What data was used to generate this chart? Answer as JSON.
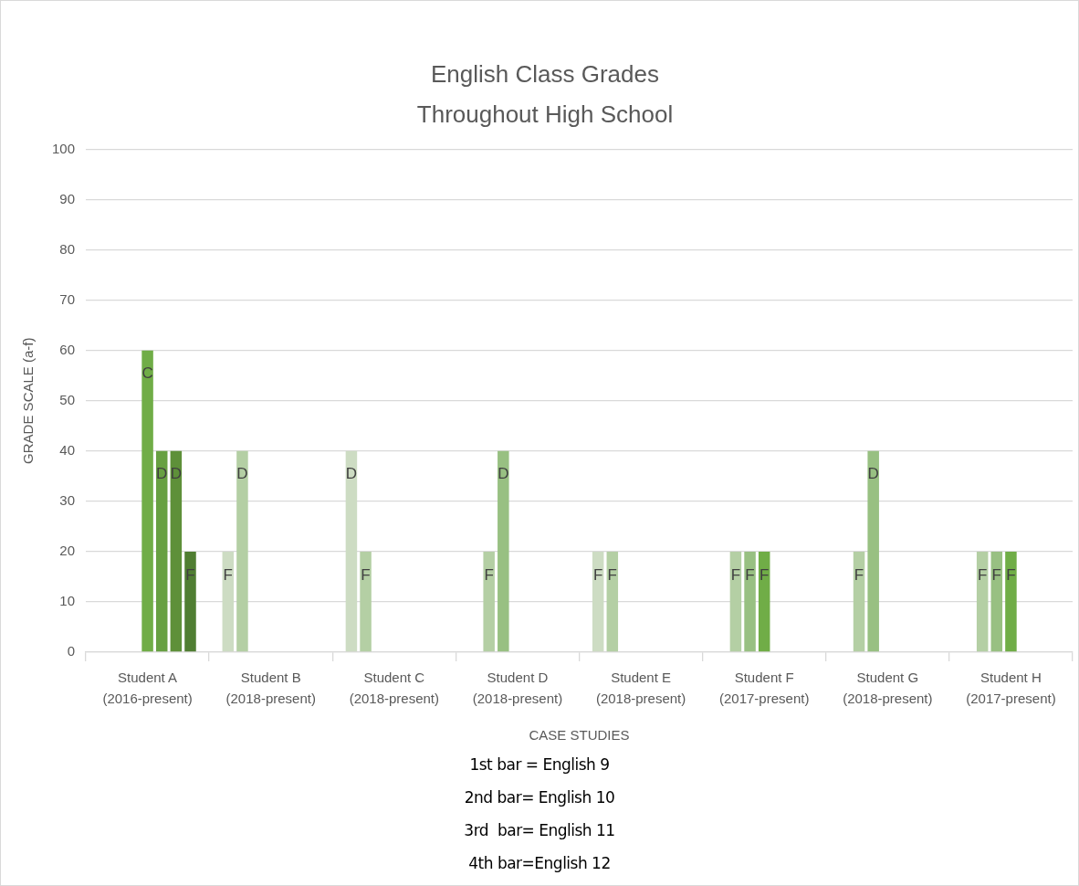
{
  "chart_data": {
    "type": "bar",
    "title": "English Class Grades\nThroughout High School",
    "xlabel": "CASE STUDIES",
    "ylabel": "GRADE SCALE (a-f)",
    "categories": [
      "Student A\n(2016-present)",
      "Student B\n(2018-present)",
      "Student C\n(2018-present)",
      "Student D\n(2018-present)",
      "Student E\n(2018-present)",
      "Student F\n(2017-present)",
      "Student G\n(2018-present)",
      "Student H\n(2017-present)"
    ],
    "series": [
      {
        "color": "#cddcc3",
        "values": [
          null,
          20,
          40,
          null,
          20,
          null,
          null,
          null
        ],
        "value_labels": [
          null,
          "F",
          "D",
          null,
          "F",
          null,
          null,
          null
        ]
      },
      {
        "color": "#b4cfa4",
        "values": [
          null,
          40,
          20,
          20,
          20,
          20,
          20,
          20
        ],
        "value_labels": [
          null,
          "D",
          "F",
          "F",
          "F",
          "F",
          "F",
          "F"
        ]
      },
      {
        "color": "#98c082",
        "values": [
          null,
          null,
          null,
          40,
          null,
          20,
          40,
          20
        ],
        "value_labels": [
          null,
          null,
          null,
          "D",
          null,
          "F",
          "D",
          "F"
        ]
      },
      {
        "color": "#70ad47",
        "values": [
          60,
          null,
          null,
          null,
          null,
          20,
          null,
          20
        ],
        "value_labels": [
          "C",
          null,
          null,
          null,
          null,
          "F",
          null,
          "F"
        ]
      },
      {
        "color": "#67a042",
        "values": [
          40,
          null,
          null,
          null,
          null,
          null,
          null,
          null
        ],
        "value_labels": [
          "D",
          null,
          null,
          null,
          null,
          null,
          null,
          null
        ]
      },
      {
        "color": "#5e9039",
        "values": [
          40,
          null,
          null,
          null,
          null,
          null,
          null,
          null
        ],
        "value_labels": [
          "D",
          null,
          null,
          null,
          null,
          null,
          null,
          null
        ]
      },
      {
        "color": "#507e32",
        "values": [
          20,
          null,
          null,
          null,
          null,
          null,
          null,
          null
        ],
        "value_labels": [
          "F",
          null,
          null,
          null,
          null,
          null,
          null,
          null
        ]
      }
    ],
    "ylim": [
      0,
      100
    ],
    "yticks": [
      0,
      10,
      20,
      30,
      40,
      50,
      60,
      70,
      80,
      90,
      100
    ],
    "grid": "y",
    "legend": false,
    "annotations": [
      "1st bar = English 9",
      "2nd bar= English 10",
      "3rd  bar= English 11",
      "4th bar=English 12"
    ]
  }
}
